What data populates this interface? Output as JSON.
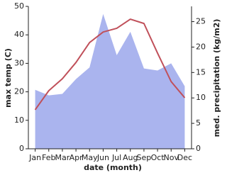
{
  "chart_data": {
    "type": "line",
    "x_label": "date (month)",
    "y_label": "max temp (C)",
    "y2_label": "med. precipitation (kg/m2)",
    "categories": [
      "Jan",
      "Feb",
      "Mar",
      "Apr",
      "May",
      "Jun",
      "Jul",
      "Aug",
      "Sep",
      "Oct",
      "Nov",
      "Dec"
    ],
    "series": [
      {
        "name": "med. precipitation",
        "type": "area",
        "axis": "y2",
        "color": "#aab4ee",
        "values": [
          11.6,
          10.5,
          10.8,
          13.7,
          16,
          26.5,
          18.4,
          23,
          15.8,
          15.4,
          16.8,
          12.3
        ]
      },
      {
        "name": "max temp",
        "type": "line",
        "color": "#c0505a",
        "values": [
          13.7,
          20.4,
          24.6,
          30.3,
          37.3,
          41,
          42.3,
          45.5,
          44,
          33.6,
          23.6,
          17.9
        ]
      }
    ],
    "ylim": [
      0,
      50
    ],
    "yticks": [
      0,
      10,
      20,
      30,
      40,
      50
    ],
    "y2lim": [
      0,
      28
    ],
    "y2ticks": [
      0,
      5,
      10,
      15,
      20,
      25
    ]
  }
}
